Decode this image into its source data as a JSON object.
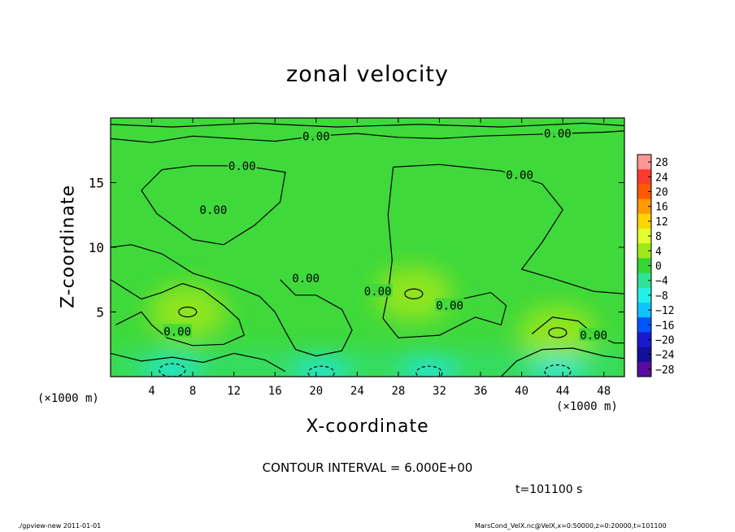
{
  "chart_data": {
    "type": "heatmap",
    "title": "zonal velocity",
    "xlabel": "X-coordinate",
    "ylabel": "Z-coordinate",
    "x_unit_left": "(×1000 m)",
    "x_unit_right": "(×1000 m)",
    "xlim": [
      0,
      50
    ],
    "ylim": [
      0,
      20
    ],
    "x_ticks": [
      4,
      8,
      12,
      16,
      20,
      24,
      28,
      32,
      36,
      40,
      44,
      48
    ],
    "y_ticks": [
      5,
      10,
      15
    ],
    "colorbar": {
      "levels": [
        28,
        24,
        20,
        16,
        12,
        8,
        4,
        0,
        -4,
        -8,
        -12,
        -16,
        -20,
        -24,
        -28
      ],
      "label_texts": [
        "28",
        "24",
        "20",
        "16",
        "12",
        "8",
        "4",
        "0",
        "−4",
        "−8",
        "−12",
        "−16",
        "−20",
        "−24",
        "−28"
      ],
      "colors": [
        "#ff9595",
        "#ff3b2f",
        "#ff5a00",
        "#ff9a00",
        "#ffd400",
        "#e0ff2e",
        "#9ee81a",
        "#35d534",
        "#2fe296",
        "#23f0e6",
        "#0fc3ff",
        "#0055ff",
        "#1a1acc",
        "#120f9a",
        "#5a0aa0"
      ]
    },
    "contour_labels": [
      {
        "text": "0.00",
        "x": 20.0,
        "z": 18.6
      },
      {
        "text": "0.00",
        "x": 43.5,
        "z": 18.8
      },
      {
        "text": "0.00",
        "x": 12.8,
        "z": 16.3
      },
      {
        "text": "0.00",
        "x": 39.8,
        "z": 15.6
      },
      {
        "text": "0.00",
        "x": 10.0,
        "z": 12.9
      },
      {
        "text": "0.00",
        "x": 19.0,
        "z": 7.6
      },
      {
        "text": "0.00",
        "x": 26.0,
        "z": 6.6
      },
      {
        "text": "0.00",
        "x": 33.0,
        "z": 5.5
      },
      {
        "text": "0.00",
        "x": 6.5,
        "z": 3.5
      },
      {
        "text": "0.00",
        "x": 47.0,
        "z": 3.2
      }
    ],
    "field_features": [
      {
        "kind": "positive max",
        "x": 7.5,
        "z": 5.0
      },
      {
        "kind": "positive max",
        "x": 43.5,
        "z": 3.4
      },
      {
        "kind": "positive max",
        "x": 29.5,
        "z": 6.4
      },
      {
        "kind": "negative min",
        "x": 20.5,
        "z": 0.3
      },
      {
        "kind": "negative min",
        "x": 31.0,
        "z": 0.3
      },
      {
        "kind": "negative min",
        "x": 43.5,
        "z": 0.4
      },
      {
        "kind": "negative min",
        "x": 6.0,
        "z": 0.5
      }
    ],
    "contour_interval": "CONTOUR INTERVAL = 6.000E+00",
    "time": "t=101100 s"
  },
  "footer": {
    "program": "./gpview-new   2011-01-01",
    "source": "MarsCond_VelX.nc@VelX,x=0:50000,z=0:20000,t=101100"
  }
}
